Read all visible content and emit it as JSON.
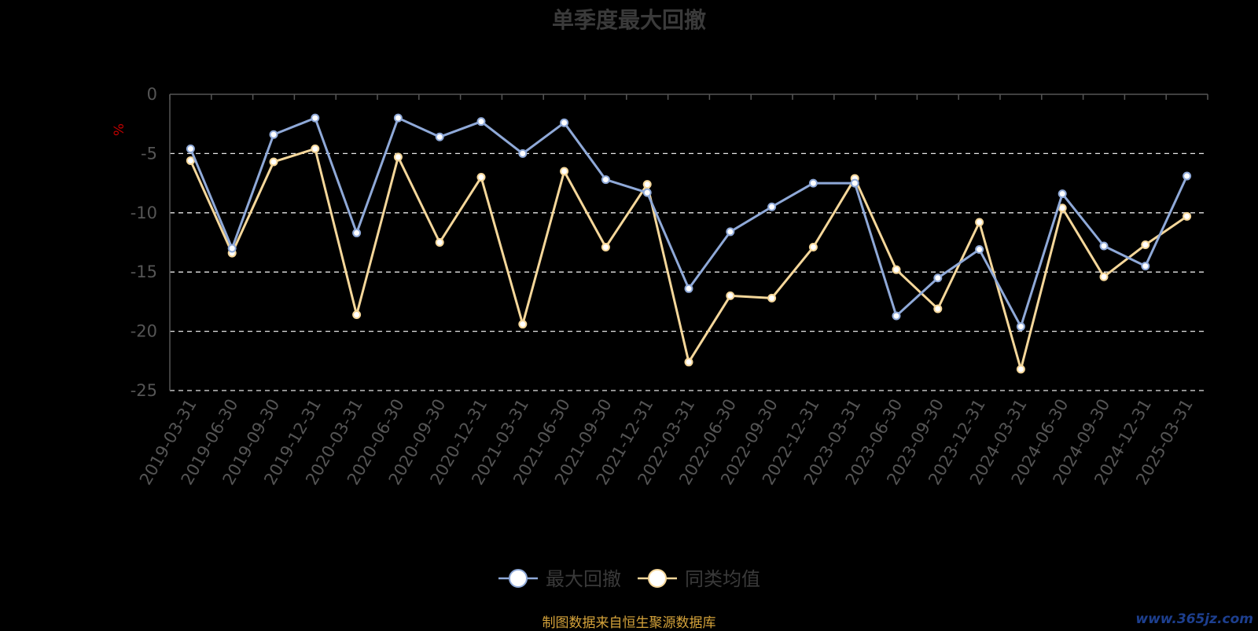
{
  "chart_data": {
    "type": "line",
    "title": "单季度最大回撤",
    "ylabel": "%",
    "ylim": [
      -25,
      0
    ],
    "yticks": [
      0,
      -5,
      -10,
      -15,
      -20,
      -25
    ],
    "grid": "dashed horizontal",
    "legend_position": "bottom-center",
    "categories": [
      "2019-03-31",
      "2019-06-30",
      "2019-09-30",
      "2019-12-31",
      "2020-03-31",
      "2020-06-30",
      "2020-09-30",
      "2020-12-31",
      "2021-03-31",
      "2021-06-30",
      "2021-09-30",
      "2021-12-31",
      "2022-03-31",
      "2022-06-30",
      "2022-09-30",
      "2022-12-31",
      "2023-03-31",
      "2023-06-30",
      "2023-09-30",
      "2023-12-31",
      "2024-03-31",
      "2024-06-30",
      "2024-09-30",
      "2024-12-31",
      "2025-03-31"
    ],
    "series": [
      {
        "name": "最大回撤",
        "color": "#8fa9d8",
        "values": [
          -4.6,
          -13.0,
          -3.4,
          -2.0,
          -11.7,
          -2.0,
          -3.6,
          -2.3,
          -5.0,
          -2.4,
          -7.2,
          -8.3,
          -16.4,
          -11.6,
          -9.5,
          -7.5,
          -7.5,
          -18.7,
          -15.5,
          -13.1,
          -19.6,
          -8.4,
          -12.8,
          -14.5,
          -6.9
        ]
      },
      {
        "name": "同类均值",
        "color": "#f5d79a",
        "values": [
          -5.6,
          -13.4,
          -5.7,
          -4.6,
          -18.6,
          -5.3,
          -12.5,
          -7.0,
          -19.4,
          -6.5,
          -12.9,
          -7.6,
          -22.6,
          -17.0,
          -17.2,
          -12.9,
          -7.1,
          -14.8,
          -18.1,
          -10.8,
          -23.2,
          -9.6,
          -15.4,
          -12.7,
          -10.3
        ]
      }
    ]
  },
  "footer": {
    "source": "制图数据来自恒生聚源数据库",
    "watermark": "www.365jz.com"
  }
}
